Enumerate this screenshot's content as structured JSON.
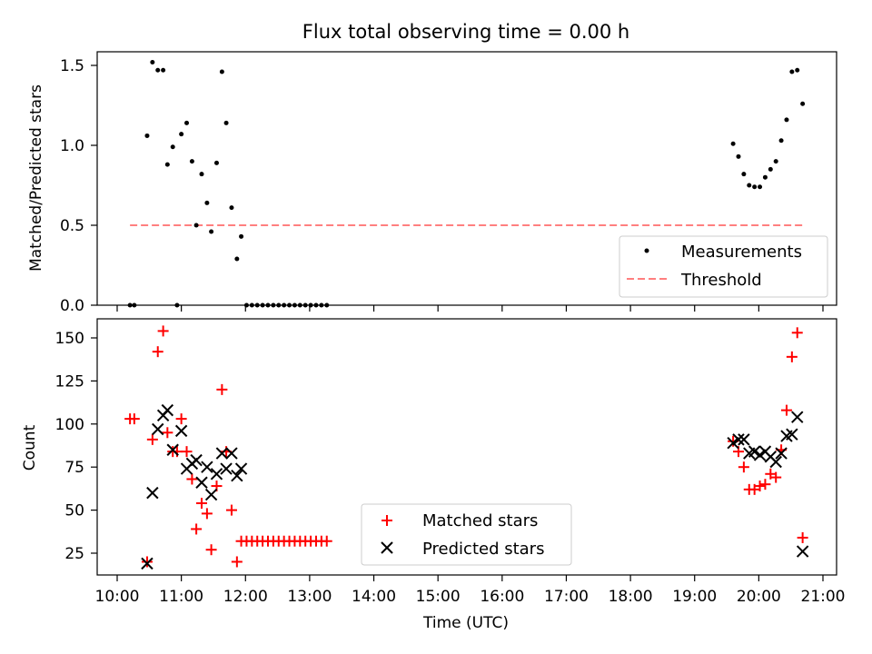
{
  "chart_data": [
    {
      "type": "scatter",
      "title": "Flux total observing time = 0.00 h",
      "xlabel": "",
      "ylabel": "Matched/Predicted stars",
      "xlim": [
        "10:00",
        "21:00"
      ],
      "ylim": [
        0,
        1.6
      ],
      "yticks": [
        "0.0",
        "0.5",
        "1.0",
        "1.5"
      ],
      "legend_position": "lower-right",
      "legend": [
        "Measurements",
        "Threshold"
      ],
      "series": [
        {
          "name": "Measurements",
          "marker": "dot",
          "color": "#000000",
          "x": [
            "10:12",
            "10:16",
            "10:28",
            "10:33",
            "10:38",
            "10:43",
            "10:47",
            "10:52",
            "10:56",
            "11:00",
            "11:05",
            "11:10",
            "11:14",
            "11:19",
            "11:24",
            "11:28",
            "11:33",
            "11:38",
            "11:42",
            "11:47",
            "11:52",
            "11:56",
            "12:01",
            "12:06",
            "12:11",
            "12:16",
            "12:21",
            "12:26",
            "12:31",
            "12:36",
            "12:41",
            "12:46",
            "12:51",
            "12:56",
            "13:01",
            "13:06",
            "13:11",
            "13:16",
            "19:36",
            "19:41",
            "19:46",
            "19:51",
            "19:56",
            "20:01",
            "20:06",
            "20:11",
            "20:16",
            "20:21",
            "20:26",
            "20:31",
            "20:36",
            "20:41"
          ],
          "values": [
            0.0,
            0.0,
            1.06,
            1.52,
            1.47,
            1.47,
            0.88,
            0.99,
            0.0,
            1.07,
            1.14,
            0.9,
            0.5,
            0.82,
            0.64,
            0.46,
            0.89,
            1.46,
            1.14,
            0.61,
            0.29,
            0.43,
            0.0,
            0.0,
            0.0,
            0.0,
            0.0,
            0.0,
            0.0,
            0.0,
            0.0,
            0.0,
            0.0,
            0.0,
            0.0,
            0.0,
            0.0,
            0.0,
            1.01,
            0.93,
            0.82,
            0.75,
            0.74,
            0.74,
            0.8,
            0.85,
            0.9,
            1.03,
            1.16,
            1.46,
            1.47,
            1.26
          ]
        },
        {
          "name": "Threshold",
          "marker": "dashed-line",
          "color": "#ff7f7f",
          "x": [
            "10:12",
            "20:41"
          ],
          "values": [
            0.5,
            0.5
          ]
        }
      ]
    },
    {
      "type": "scatter",
      "title": "",
      "xlabel": "Time (UTC)",
      "ylabel": "Count",
      "xlim": [
        "10:00",
        "21:00"
      ],
      "ylim": [
        12,
        162
      ],
      "xticks": [
        "10:00",
        "11:00",
        "12:00",
        "13:00",
        "14:00",
        "15:00",
        "16:00",
        "17:00",
        "18:00",
        "19:00",
        "20:00",
        "21:00"
      ],
      "yticks": [
        "25",
        "50",
        "75",
        "100",
        "125",
        "150"
      ],
      "legend_position": "lower-center",
      "legend": [
        "Matched stars",
        "Predicted stars"
      ],
      "series": [
        {
          "name": "Matched stars",
          "marker": "plus",
          "color": "#ff0000",
          "x": [
            "10:12",
            "10:16",
            "10:28",
            "10:33",
            "10:38",
            "10:43",
            "10:47",
            "10:52",
            "10:56",
            "11:00",
            "11:05",
            "11:10",
            "11:14",
            "11:19",
            "11:24",
            "11:28",
            "11:33",
            "11:38",
            "11:42",
            "11:47",
            "11:52",
            "11:56",
            "12:01",
            "12:06",
            "12:11",
            "12:16",
            "12:21",
            "12:26",
            "12:31",
            "12:36",
            "12:41",
            "12:46",
            "12:51",
            "12:56",
            "13:01",
            "13:06",
            "13:11",
            "13:16",
            "19:36",
            "19:41",
            "19:46",
            "19:51",
            "19:56",
            "20:01",
            "20:06",
            "20:11",
            "20:16",
            "20:21",
            "20:26",
            "20:31",
            "20:36",
            "20:41"
          ],
          "values": [
            103,
            103,
            20,
            91,
            142,
            154,
            95,
            84,
            84,
            103,
            84,
            68,
            39,
            54,
            48,
            27,
            64,
            120,
            84,
            50,
            20,
            32,
            32,
            32,
            32,
            32,
            32,
            32,
            32,
            32,
            32,
            32,
            32,
            32,
            32,
            32,
            32,
            32,
            90,
            84,
            75,
            62,
            62,
            64,
            65,
            71,
            69,
            85,
            108,
            139,
            153,
            34
          ]
        },
        {
          "name": "Predicted stars",
          "marker": "x",
          "color": "#000000",
          "x": [
            "10:28",
            "10:33",
            "10:38",
            "10:43",
            "10:47",
            "10:52",
            "11:00",
            "11:05",
            "11:10",
            "11:14",
            "11:19",
            "11:24",
            "11:28",
            "11:33",
            "11:38",
            "11:42",
            "11:47",
            "11:52",
            "11:56",
            "19:36",
            "19:41",
            "19:46",
            "19:51",
            "19:56",
            "20:01",
            "20:06",
            "20:11",
            "20:16",
            "20:21",
            "20:26",
            "20:31",
            "20:36",
            "20:41"
          ],
          "values": [
            19,
            60,
            97,
            105,
            108,
            85,
            96,
            74,
            77,
            79,
            66,
            75,
            59,
            71,
            83,
            74,
            83,
            70,
            74,
            89,
            91,
            91,
            83,
            84,
            82,
            84,
            81,
            78,
            83,
            93,
            94,
            104,
            26
          ]
        }
      ]
    }
  ]
}
